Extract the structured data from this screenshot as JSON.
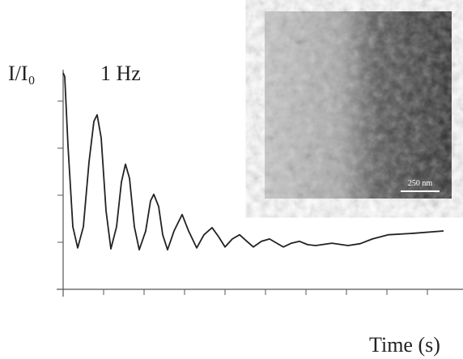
{
  "chart_data": {
    "type": "line",
    "ylabel": "I/I₀",
    "xlabel": "Time (s)",
    "annotation": "1 Hz",
    "inset_scale_bar": "250 nm",
    "x": [
      0,
      0.04,
      0.12,
      0.24,
      0.36,
      0.5,
      0.64,
      0.76,
      0.84,
      0.94,
      1.06,
      1.18,
      1.32,
      1.44,
      1.54,
      1.64,
      1.76,
      1.88,
      2.04,
      2.16,
      2.24,
      2.36,
      2.46,
      2.58,
      2.74,
      2.94,
      3.1,
      3.3,
      3.48,
      3.68,
      3.84,
      4.0,
      4.18,
      4.36,
      4.54,
      4.7,
      4.9,
      5.1,
      5.28,
      5.44,
      5.64,
      5.84,
      6.04,
      6.24,
      6.64,
      7.04,
      7.34,
      7.64,
      8.04,
      8.64,
      9.4
    ],
    "series": [
      {
        "color": "#222222",
        "values": [
          4.6,
          4.52,
          3.05,
          1.33,
          0.88,
          1.33,
          2.71,
          3.57,
          3.71,
          3.22,
          1.67,
          0.86,
          1.33,
          2.28,
          2.66,
          2.36,
          1.33,
          0.84,
          1.24,
          1.88,
          2.02,
          1.76,
          1.16,
          0.84,
          1.24,
          1.59,
          1.24,
          0.88,
          1.16,
          1.31,
          1.12,
          0.9,
          1.07,
          1.16,
          1.02,
          0.9,
          1.02,
          1.07,
          0.98,
          0.9,
          0.98,
          1.02,
          0.95,
          0.93,
          0.98,
          0.93,
          0.97,
          1.07,
          1.16,
          1.19,
          1.24
        ]
      }
    ],
    "xlim": [
      0,
      10
    ],
    "ylim": [
      0,
      4.6
    ],
    "xticks": [
      0,
      1,
      2,
      3,
      4,
      5,
      6,
      7,
      8,
      9
    ],
    "yticks": [
      0,
      1,
      2,
      3,
      4
    ]
  }
}
